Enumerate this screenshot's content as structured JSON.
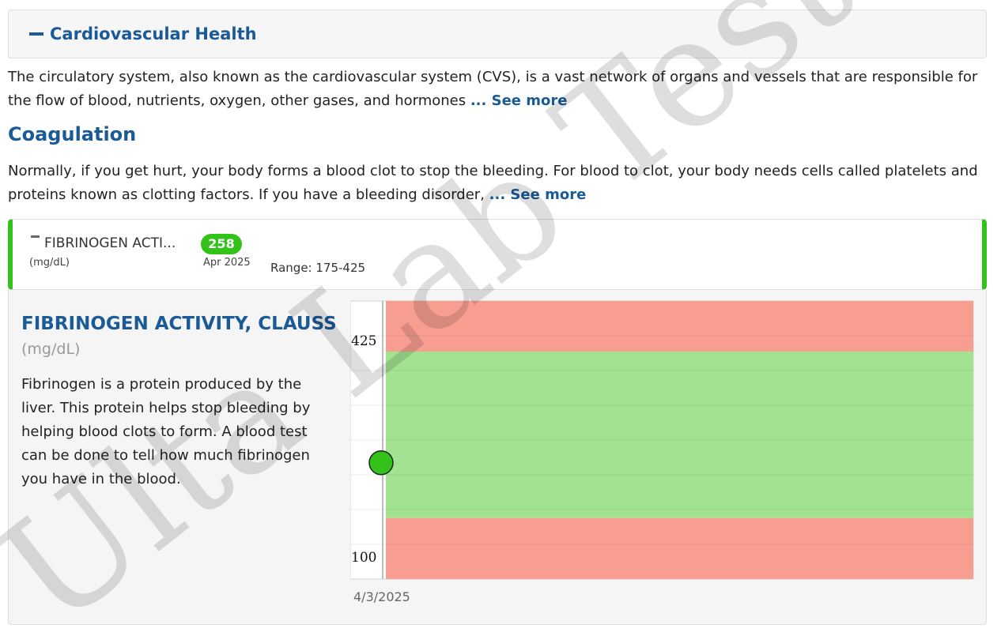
{
  "section": {
    "title": "Cardiovascular Health",
    "icon": "minus-icon"
  },
  "section_description": {
    "text": "The circulatory system, also known as the cardiovascular system (CVS), is a vast network of organs and vessels that are responsible for the flow of blood, nutrients, oxygen, other gases, and hormones ",
    "see_more": "... See more"
  },
  "subsection": {
    "title": "Coagulation",
    "text": "Normally, if you get hurt, your body forms a blood clot to stop the bleeding. For blood to clot, your body needs cells called platelets and proteins known as clotting factors. If you have a bleeding disorder, ",
    "see_more": "... See more"
  },
  "test_card": {
    "name": "FIBRINOGEN ACTI...",
    "unit": "(mg/dL)",
    "value": "258",
    "date": "Apr 2025",
    "range": "Range: 175-425",
    "status_color": "#33c21a"
  },
  "detail": {
    "title": "FIBRINOGEN ACTIVITY, CLAUSS",
    "unit": "(mg/dL)",
    "description": "Fibrinogen is a protein produced by the liver. This protein helps stop bleeding by helping blood clots to form. A blood test can be done to tell how much fibrinogen you have in the blood."
  },
  "chart_data": {
    "type": "scatter",
    "x": [
      "4/3/2025"
    ],
    "values": [
      258
    ],
    "ylim": [
      100,
      425
    ],
    "y_ticks": [
      425,
      100
    ],
    "x_ticks": [
      "4/3/2025"
    ],
    "normal_range": [
      175,
      425
    ],
    "colors": {
      "normal": "#a1e391",
      "abnormal": "#f89e91",
      "point": "#33c21a"
    }
  },
  "watermark": "Ulta Lab Tests"
}
